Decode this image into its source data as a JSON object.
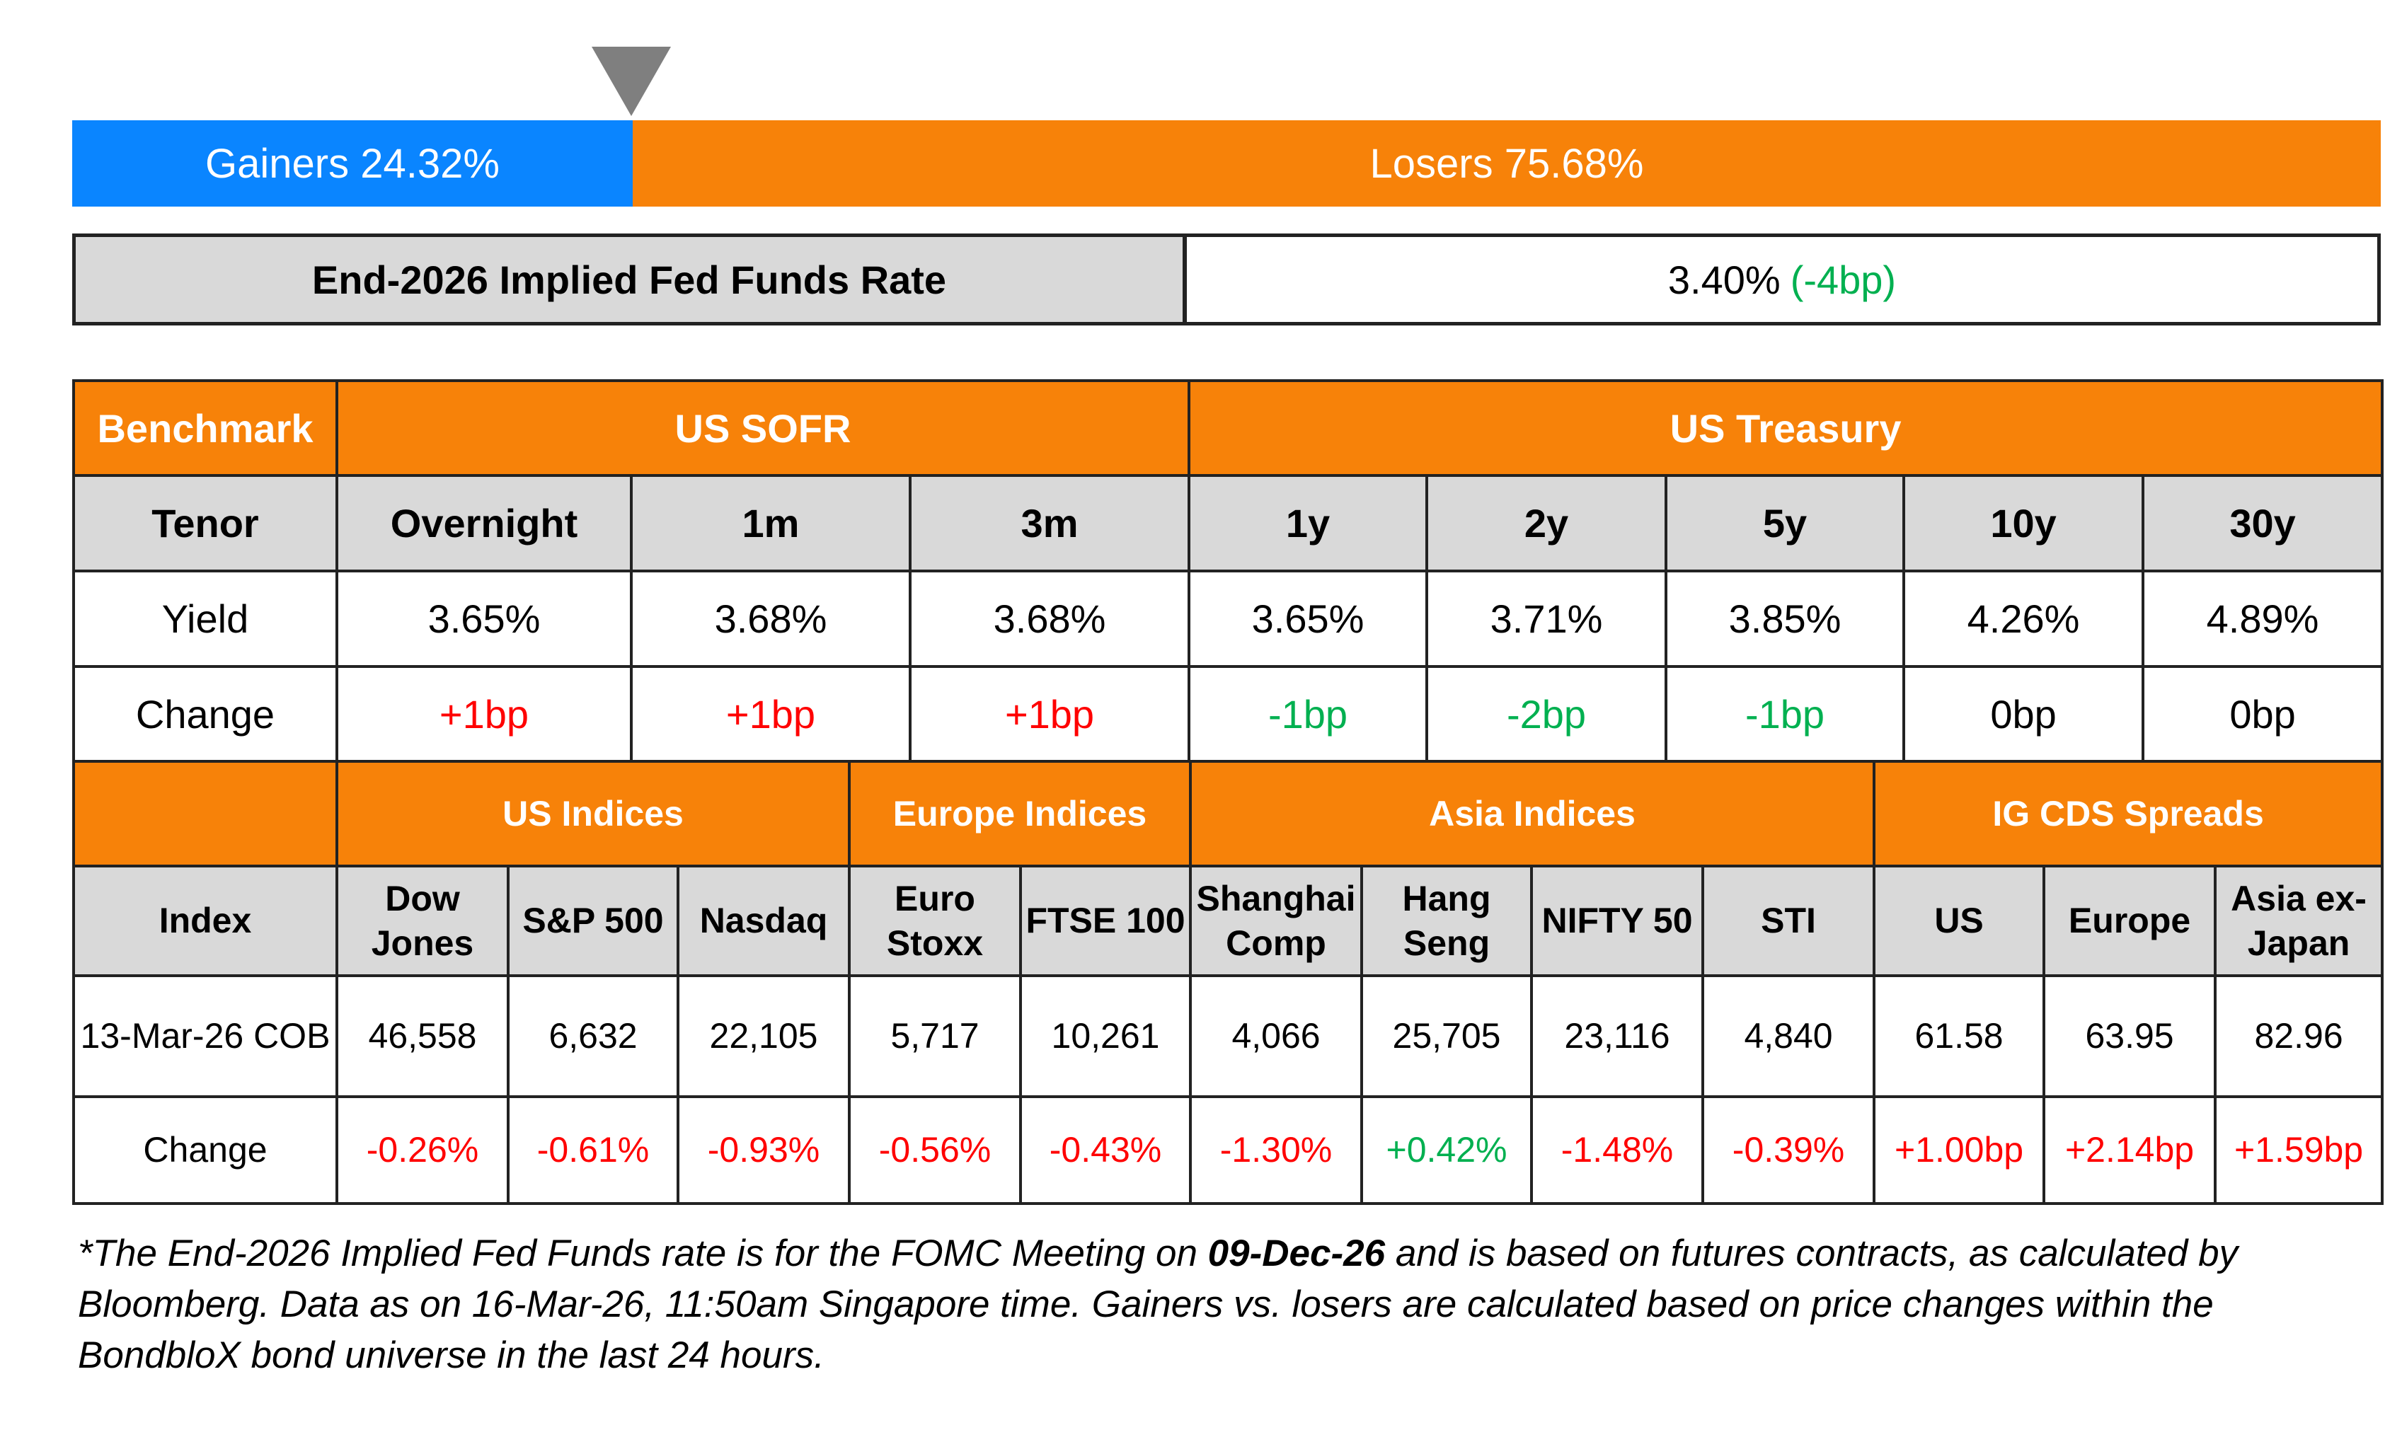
{
  "sentiment": {
    "gainers_label": "Gainers 24.32%",
    "losers_label": "Losers 75.68%",
    "gainers_pct": 24.32,
    "losers_pct": 75.68,
    "marker_icon": "triangle-down-icon",
    "gainers_color": "#0a85ff",
    "losers_color": "#f78209"
  },
  "fed": {
    "label": "End-2026 Implied Fed Funds Rate",
    "value": "3.40%",
    "change": "(-4bp)"
  },
  "rates": {
    "benchmark_label": "Benchmark",
    "group_sofr": "US SOFR",
    "group_treasury": "US Treasury",
    "tenor_label": "Tenor",
    "tenors": [
      "Overnight",
      "1m",
      "3m",
      "1y",
      "2y",
      "5y",
      "10y",
      "30y"
    ],
    "yield_label": "Yield",
    "yields": [
      "3.65%",
      "3.68%",
      "3.68%",
      "3.65%",
      "3.71%",
      "3.85%",
      "4.26%",
      "4.89%"
    ],
    "change_label": "Change",
    "changes": [
      "+1bp",
      "+1bp",
      "+1bp",
      "-1bp",
      "-2bp",
      "-1bp",
      "0bp",
      "0bp"
    ]
  },
  "indices": {
    "groups": [
      "US Indices",
      "Europe Indices",
      "Asia Indices",
      "IG CDS Spreads"
    ],
    "index_label": "Index",
    "names": [
      [
        "Dow",
        "Jones"
      ],
      [
        "S&P 500"
      ],
      [
        "Nasdaq"
      ],
      [
        "Euro",
        "Stoxx"
      ],
      [
        "FTSE 100"
      ],
      [
        "Shanghai",
        "Comp"
      ],
      [
        "Hang",
        "Seng"
      ],
      [
        "NIFTY 50"
      ],
      [
        "STI"
      ],
      [
        "US"
      ],
      [
        "Europe"
      ],
      [
        "Asia ex-",
        "Japan"
      ]
    ],
    "date_label": "13-Mar-26 COB",
    "values": [
      "46,558",
      "6,632",
      "22,105",
      "5,717",
      "10,261",
      "4,066",
      "25,705",
      "23,116",
      "4,840",
      "61.58",
      "63.95",
      "82.96"
    ],
    "change_label": "Change",
    "changes": [
      "-0.26%",
      "-0.61%",
      "-0.93%",
      "-0.56%",
      "-0.43%",
      "-1.30%",
      "+0.42%",
      "-1.48%",
      "-0.39%",
      "+1.00bp",
      "+2.14bp",
      "+1.59bp"
    ]
  },
  "footnote": {
    "part1": "*The End-2026 Implied Fed Funds rate is for the FOMC Meeting on ",
    "date_bold": "09-Dec-26",
    "part2": " and is based on futures contracts, as calculated by",
    "line2": "Bloomberg. Data as on 16-Mar-26, 11:50am Singapore time. Gainers vs. losers are calculated based on price changes within the",
    "line3": "BondbloX bond universe in the last 24 hours."
  },
  "colors": {
    "header_orange": "#f78209",
    "header_gray": "#d9d9d9",
    "positive_red": "#ff0000",
    "negative_green": "#00b050"
  }
}
